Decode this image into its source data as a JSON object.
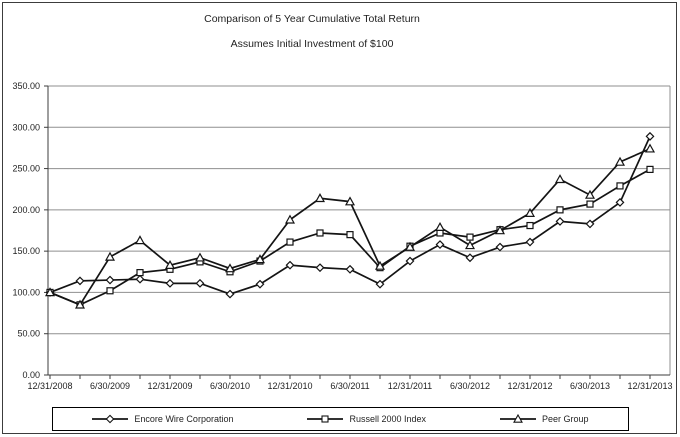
{
  "page": {
    "title": "Comparison of 5 Year Cumulative Total Return",
    "subtitle": "Assumes Initial Investment of $100"
  },
  "chart_data": {
    "type": "line",
    "title": "Comparison of 5 Year Cumulative Total Return",
    "subtitle": "Assumes Initial Investment of $100",
    "x": [
      "12/31/2008",
      "3/31/2009",
      "6/30/2009",
      "9/30/2009",
      "12/31/2009",
      "3/31/2010",
      "6/30/2010",
      "9/30/2010",
      "12/31/2010",
      "3/31/2011",
      "6/30/2011",
      "9/30/2011",
      "12/31/2011",
      "3/31/2012",
      "6/30/2012",
      "9/30/2012",
      "12/31/2012",
      "3/31/2013",
      "6/30/2013",
      "9/30/2013",
      "12/31/2013"
    ],
    "x_tick_labels_shown": [
      "12/31/2008",
      "6/30/2009",
      "12/31/2009",
      "6/30/2010",
      "12/31/2010",
      "6/30/2011",
      "12/31/2011",
      "6/30/2012",
      "12/31/2012",
      "6/30/2013",
      "12/31/2013"
    ],
    "series": [
      {
        "name": "Encore Wire Corporation",
        "marker": "diamond",
        "values": [
          100,
          114,
          115,
          116,
          111,
          111,
          98,
          110,
          133,
          130,
          128,
          110,
          138,
          158,
          142,
          155,
          161,
          186,
          183,
          209,
          289
        ]
      },
      {
        "name": "Russell 2000 Index",
        "marker": "square",
        "values": [
          100,
          85,
          102,
          124,
          128,
          137,
          125,
          138,
          161,
          172,
          170,
          130,
          156,
          172,
          167,
          176,
          181,
          200,
          207,
          229,
          249
        ]
      },
      {
        "name": "Peer Group",
        "marker": "triangle",
        "values": [
          100,
          85,
          143,
          163,
          133,
          142,
          129,
          140,
          188,
          214,
          210,
          132,
          155,
          179,
          157,
          175,
          196,
          237,
          218,
          258,
          274
        ]
      }
    ],
    "ylim": [
      0,
      350
    ],
    "ytick_step": 50,
    "ytick_labels": [
      "0.00",
      "50.00",
      "100.00",
      "150.00",
      "200.00",
      "250.00",
      "300.00",
      "350.00"
    ],
    "grid": true,
    "legend_position": "bottom",
    "line_color": "#141414",
    "gridline_color": "#8f8f8f",
    "axis_color": "#3c3c3c",
    "marker_fill": "#ffffff"
  }
}
